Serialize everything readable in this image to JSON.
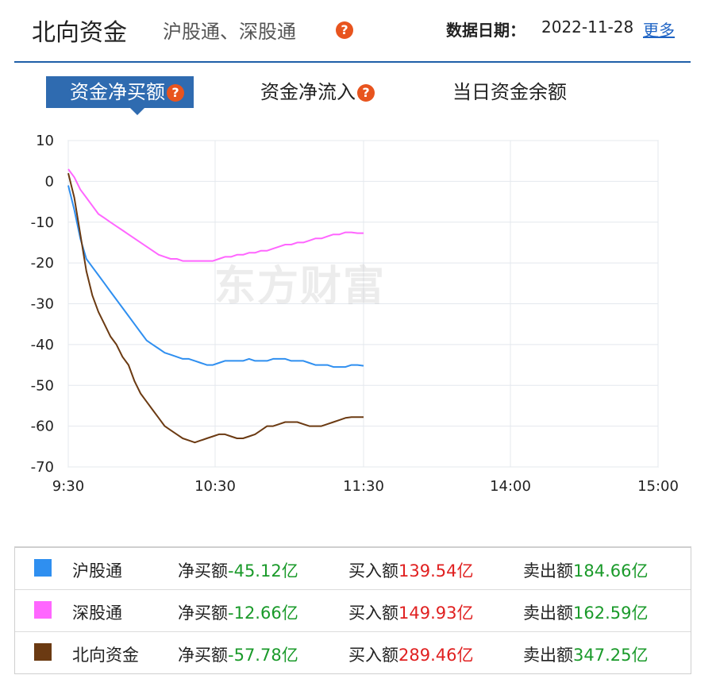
{
  "header": {
    "title": "北向资金",
    "subtitle": "沪股通、深股通",
    "date_label": "数据日期：",
    "date_value": "2022-11-28",
    "more_label": "更多"
  },
  "help_icon": "?",
  "tabs": [
    {
      "label": "资金净买额",
      "active": true,
      "help": true
    },
    {
      "label": "资金净流入",
      "active": false,
      "help": true
    },
    {
      "label": "当日资金余额",
      "active": false,
      "help": false
    }
  ],
  "watermark": "东方财富",
  "chart_data": {
    "type": "line",
    "x_ticks": [
      "9:30",
      "10:30",
      "11:30",
      "14:00",
      "15:00"
    ],
    "y_ticks": [
      10,
      0,
      -10,
      -20,
      -30,
      -40,
      -50,
      -60,
      -70
    ],
    "ylim": [
      -70,
      10
    ],
    "grid": true,
    "series": [
      {
        "name": "沪股通",
        "color": "#2f8ff0",
        "values": [
          -1,
          -7,
          -14,
          -19,
          -21,
          -23,
          -25,
          -27,
          -29,
          -31,
          -33,
          -35,
          -37,
          -39,
          -40,
          -41,
          -42,
          -42.5,
          -43,
          -43.5,
          -43.5,
          -44,
          -44.5,
          -45,
          -45,
          -44.5,
          -44,
          -44,
          -44,
          -44,
          -43.5,
          -44,
          -44,
          -44,
          -43.5,
          -43.5,
          -43.5,
          -44,
          -44,
          -44,
          -44.5,
          -45,
          -45,
          -45,
          -45.5,
          -45.5,
          -45.5,
          -45,
          -45,
          -45.2
        ]
      },
      {
        "name": "深股通",
        "color": "#ff66ff",
        "values": [
          3,
          1,
          -2,
          -4,
          -6,
          -8,
          -9,
          -10,
          -11,
          -12,
          -13,
          -14,
          -15,
          -16,
          -17,
          -18,
          -18.5,
          -19,
          -19,
          -19.5,
          -19.5,
          -19.5,
          -19.5,
          -19.5,
          -19.5,
          -19,
          -18.5,
          -18.5,
          -18,
          -18,
          -17.5,
          -17.5,
          -17,
          -17,
          -16.5,
          -16,
          -15.5,
          -15.5,
          -15,
          -15,
          -14.5,
          -14,
          -14,
          -13.5,
          -13,
          -13,
          -12.5,
          -12.5,
          -12.7,
          -12.7
        ]
      },
      {
        "name": "北向资金",
        "color": "#6b3a12",
        "values": [
          2,
          -4,
          -13,
          -22,
          -28,
          -32,
          -35,
          -38,
          -40,
          -43,
          -45,
          -49,
          -52,
          -54,
          -56,
          -58,
          -60,
          -61,
          -62,
          -63,
          -63.5,
          -64,
          -63.5,
          -63,
          -62.5,
          -62,
          -62,
          -62.5,
          -63,
          -63,
          -62.5,
          -62,
          -61,
          -60,
          -60,
          -59.5,
          -59,
          -59,
          -59,
          -59.5,
          -60,
          -60,
          -60,
          -59.5,
          -59,
          -58.5,
          -58,
          -57.8,
          -57.8,
          -57.8
        ]
      }
    ]
  },
  "legend": [
    {
      "name": "沪股通",
      "color": "#2f8ff0",
      "net_label": "净买额",
      "net": "-45.12亿",
      "buy_label": "买入额",
      "buy": "139.54亿",
      "sell_label": "卖出额",
      "sell": "184.66亿"
    },
    {
      "name": "深股通",
      "color": "#ff66ff",
      "net_label": "净买额",
      "net": "-12.66亿",
      "buy_label": "买入额",
      "buy": "149.93亿",
      "sell_label": "卖出额",
      "sell": "162.59亿"
    },
    {
      "name": "北向资金",
      "color": "#6b3a12",
      "net_label": "净买额",
      "net": "-57.78亿",
      "buy_label": "买入额",
      "buy": "289.46亿",
      "sell_label": "卖出额",
      "sell": "347.25亿"
    }
  ]
}
